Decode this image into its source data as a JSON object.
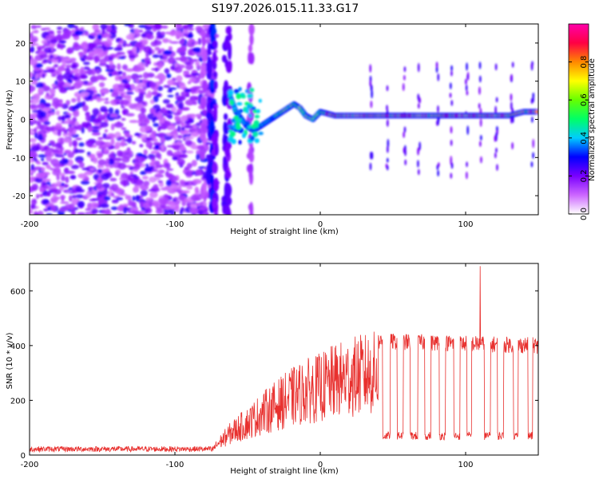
{
  "chart_data": [
    {
      "type": "heatmap",
      "title": "S197.2026.015.11.33.G17",
      "xlabel": "Height of straight line (km)",
      "ylabel": "Frequency (Hz)",
      "xlim": [
        -200,
        150
      ],
      "ylim": [
        -25,
        25
      ],
      "xticks": [
        -200,
        -100,
        0,
        100
      ],
      "yticks": [
        20,
        10,
        0,
        -10,
        -20
      ],
      "colorbar": {
        "label": "Normalized spectral amplitude",
        "range": [
          0,
          1
        ],
        "ticks": [
          0.0,
          0.2,
          0.4,
          0.6,
          0.8
        ],
        "tick_labels": [
          "0.0",
          "0.2",
          "0.4",
          "0.6",
          "0.8"
        ],
        "colors": [
          "#ffffff",
          "#cc66ff",
          "#7a00ff",
          "#0000ff",
          "#00ccff",
          "#00ff66",
          "#66ff00",
          "#ffff00",
          "#ff8800",
          "#ff0044",
          "#ff00aa"
        ]
      },
      "trace_points": [
        [
          -62,
          6
        ],
        [
          -58,
          2
        ],
        [
          -54,
          0
        ],
        [
          -50,
          -2
        ],
        [
          -46,
          -3
        ],
        [
          -42,
          -2
        ],
        [
          -38,
          -1
        ],
        [
          -34,
          0
        ],
        [
          -30,
          1
        ],
        [
          -26,
          2
        ],
        [
          -22,
          3
        ],
        [
          -18,
          4
        ],
        [
          -14,
          3
        ],
        [
          -10,
          1
        ],
        [
          -5,
          0
        ],
        [
          0,
          2
        ],
        [
          10,
          1
        ],
        [
          20,
          1
        ],
        [
          30,
          1
        ],
        [
          40,
          1
        ],
        [
          50,
          1
        ],
        [
          60,
          1
        ],
        [
          70,
          1
        ],
        [
          80,
          1
        ],
        [
          90,
          1
        ],
        [
          100,
          1
        ],
        [
          110,
          1
        ],
        [
          120,
          1
        ],
        [
          130,
          1
        ],
        [
          140,
          2
        ],
        [
          150,
          2
        ]
      ]
    },
    {
      "type": "line",
      "xlabel": "Height of straight line (km)",
      "ylabel": "SNR (10 * v/v)",
      "xlim": [
        -200,
        150
      ],
      "ylim": [
        0,
        700
      ],
      "xticks": [
        -200,
        -100,
        0,
        100
      ],
      "yticks": [
        0,
        200,
        400,
        600
      ],
      "series": [
        {
          "name": "SNR",
          "color": "#e8302e",
          "envelope": [
            [
              -200,
              22
            ],
            [
              -75,
              22
            ],
            [
              -70,
              60
            ],
            [
              -60,
              120
            ],
            [
              -50,
              160
            ],
            [
              -40,
              210
            ],
            [
              -30,
              250
            ],
            [
              -20,
              290
            ],
            [
              -10,
              320
            ],
            [
              0,
              340
            ],
            [
              10,
              370
            ],
            [
              20,
              390
            ],
            [
              30,
              405
            ],
            [
              40,
              415
            ],
            [
              45,
              415
            ],
            [
              150,
              400
            ]
          ],
          "dropouts": [
            [
              43,
              48
            ],
            [
              53,
              57
            ],
            [
              62,
              67
            ],
            [
              72,
              76
            ],
            [
              82,
              86
            ],
            [
              92,
              96
            ],
            [
              101,
              104
            ],
            [
              113,
              117
            ],
            [
              122,
              126
            ],
            [
              133,
              136
            ],
            [
              143,
              146
            ]
          ],
          "dropout_level": 70,
          "spike": [
            110,
            690
          ]
        }
      ]
    }
  ]
}
